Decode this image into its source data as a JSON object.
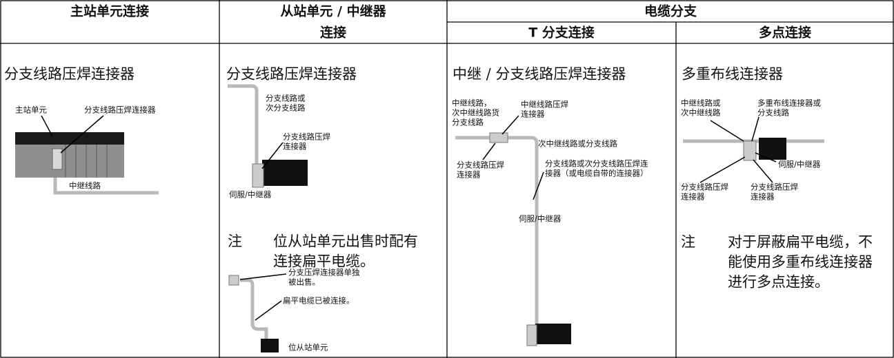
{
  "table": {
    "headers": {
      "master": "主站单元连接",
      "slave": [
        "从站单元 / 中继器",
        "连接"
      ],
      "branch": "电缆分支",
      "t_branch": "T 分支连接",
      "multi": "多点连接"
    },
    "cells": [
      {
        "title": "分支线路压焊连接器",
        "labels": [
          [
            "主站单元"
          ],
          [
            "分支线路压焊连接器"
          ],
          [
            "中继线路"
          ]
        ]
      },
      {
        "title": "分支线路压焊连接器",
        "labels": [
          [
            "分支线路或",
            "次分支线路"
          ],
          [
            "分支线路压焊",
            "连接器"
          ],
          [
            "伺服/中继器"
          ],
          [
            "分支压焊连接器单独",
            "被出售。"
          ],
          [
            "扁平电缆已被连接。"
          ],
          [
            "位从站单元"
          ]
        ],
        "note": {
          "mark": "注",
          "lines": [
            "位从站单元出售时配有",
            "连接扁平电缆。"
          ]
        }
      },
      {
        "title": "中继 / 分支线路压焊连接器",
        "labels": [
          [
            "中继线路，",
            "次中继线路货",
            "分支线路"
          ],
          [
            "中继线路压焊",
            "连接器"
          ],
          [
            "次中继线路或分支线路"
          ],
          [
            "分支线路压焊",
            "连接器"
          ],
          [
            "分支线路或次分支线路压焊连",
            "接器（或电缆自带的连接器）"
          ],
          [
            "伺服/中继器"
          ]
        ]
      },
      {
        "title": "多重布线连接器",
        "labels": [
          [
            "中继线路或",
            "次中继线路"
          ],
          [
            "多重布线连接器或",
            "分支线路"
          ],
          [
            "伺服/中继器"
          ],
          [
            "分支线路压焊",
            "连接器"
          ],
          [
            "分支线路压焊",
            "连接器"
          ]
        ],
        "note": {
          "mark": "注",
          "lines": [
            "对于屏蔽扁平电缆，不",
            "能使用多重布线连接器",
            "进行多点连接。"
          ]
        }
      }
    ]
  }
}
